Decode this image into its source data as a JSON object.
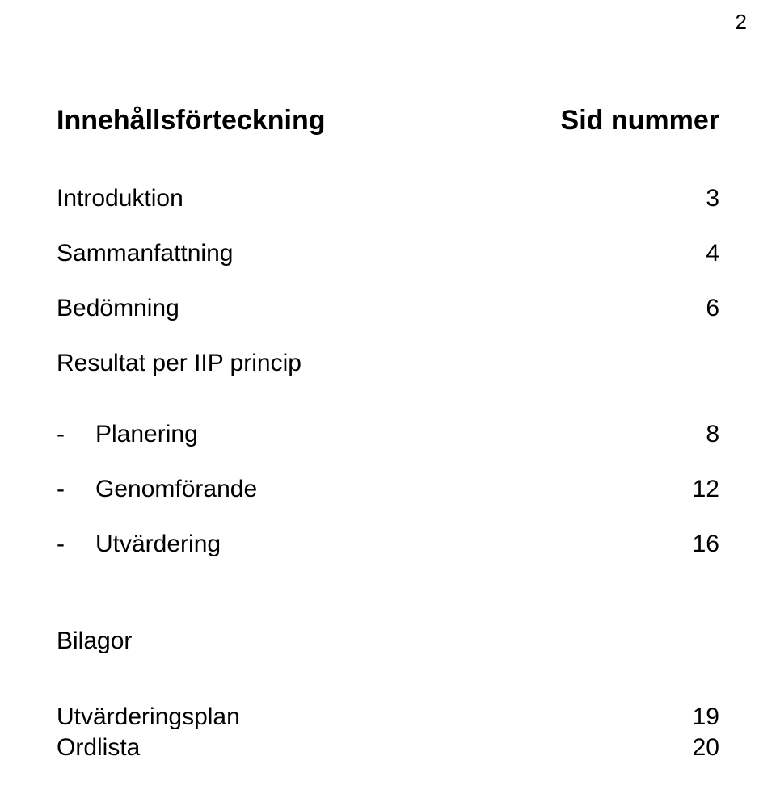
{
  "page_number": "2",
  "heading": {
    "left": "Innehållsförteckning",
    "right": "Sid nummer"
  },
  "entries": [
    {
      "label": "Introduktion",
      "page": "3"
    },
    {
      "label": "Sammanfattning",
      "page": "4"
    },
    {
      "label": "Bedömning",
      "page": "6"
    }
  ],
  "subheader": "Resultat per IIP princip",
  "subentries": [
    {
      "dash": "-",
      "label": "Planering",
      "page": "8"
    },
    {
      "dash": "-",
      "label": "Genomförande",
      "page": "12"
    },
    {
      "dash": "-",
      "label": "Utvärdering",
      "page": "16"
    }
  ],
  "bilagor_label": "Bilagor",
  "bilagor_entries": [
    {
      "label": "Utvärderingsplan",
      "page": "19"
    },
    {
      "label": "Ordlista",
      "page": "20"
    }
  ]
}
